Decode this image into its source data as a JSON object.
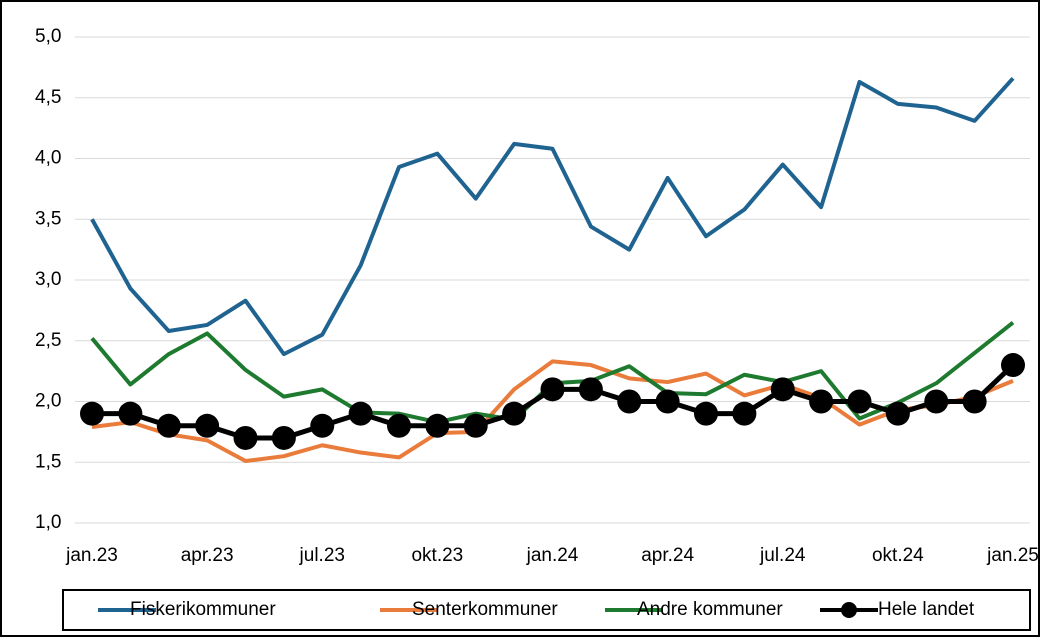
{
  "chart_data": {
    "type": "line",
    "categories": [
      "jan.23",
      null,
      null,
      "apr.23",
      null,
      null,
      "jul.23",
      null,
      null,
      "okt.23",
      null,
      null,
      "jan.24",
      null,
      null,
      "apr.24",
      null,
      null,
      "jul.24",
      null,
      null,
      "okt.24",
      null,
      null,
      "jan.25"
    ],
    "series": [
      {
        "name": "Fiskerikommuner",
        "color": "#1f6391",
        "values": [
          3.5,
          2.93,
          2.58,
          2.63,
          2.83,
          2.39,
          2.55,
          3.12,
          3.93,
          4.04,
          3.67,
          4.12,
          4.08,
          3.44,
          3.25,
          3.84,
          3.36,
          3.58,
          3.95,
          3.6,
          4.63,
          4.45,
          4.42,
          4.31,
          4.66
        ]
      },
      {
        "name": "Senterkommuner",
        "color": "#e97b3b",
        "values": [
          1.79,
          1.83,
          1.73,
          1.68,
          1.51,
          1.55,
          1.64,
          1.58,
          1.54,
          1.74,
          1.75,
          2.1,
          2.33,
          2.3,
          2.19,
          2.16,
          2.23,
          2.05,
          2.14,
          2.03,
          1.81,
          1.93,
          1.97,
          2.04,
          2.17
        ]
      },
      {
        "name": "Andre kommuner",
        "color": "#1e7a2e",
        "values": [
          2.52,
          2.14,
          2.39,
          2.56,
          2.26,
          2.04,
          2.1,
          1.91,
          1.9,
          1.83,
          1.9,
          1.85,
          2.15,
          2.17,
          2.29,
          2.07,
          2.06,
          2.22,
          2.16,
          2.25,
          1.86,
          1.99,
          2.15,
          2.4,
          2.65
        ]
      },
      {
        "name": "Hele landet",
        "color": "#000000",
        "marker": true,
        "values": [
          1.9,
          1.9,
          1.8,
          1.8,
          1.7,
          1.7,
          1.8,
          1.9,
          1.8,
          1.8,
          1.8,
          1.9,
          2.1,
          2.1,
          2.0,
          2.0,
          1.9,
          1.9,
          2.1,
          2.0,
          2.0,
          1.9,
          2.0,
          2.0,
          2.3
        ]
      }
    ],
    "ylim": [
      1,
      5
    ],
    "yticks": [
      {
        "value": 1,
        "label": "1,0"
      },
      {
        "value": 1.5,
        "label": "1,5"
      },
      {
        "value": 2,
        "label": "2,0"
      },
      {
        "value": 2.5,
        "label": "2,5"
      },
      {
        "value": 3,
        "label": "3,0"
      },
      {
        "value": 3.5,
        "label": "3,5"
      },
      {
        "value": 4,
        "label": "4,0"
      },
      {
        "value": 4.5,
        "label": "4,5"
      },
      {
        "value": 5,
        "label": "5,0"
      }
    ],
    "grid": true,
    "legend": "bottom"
  }
}
